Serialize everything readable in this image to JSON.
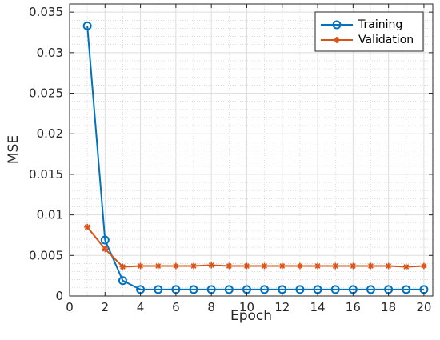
{
  "chart_data": {
    "type": "line",
    "xlabel": "Epoch",
    "ylabel": "MSE",
    "xlim": [
      0,
      20.5
    ],
    "ylim": [
      0,
      0.036
    ],
    "xticks": [
      0,
      2,
      4,
      6,
      8,
      10,
      12,
      14,
      16,
      18,
      20
    ],
    "xtick_labels": [
      "0",
      "2",
      "4",
      "6",
      "8",
      "10",
      "12",
      "14",
      "16",
      "18",
      "20"
    ],
    "yticks": [
      0,
      0.005,
      0.01,
      0.015,
      0.02,
      0.025,
      0.03,
      0.035
    ],
    "ytick_labels": [
      "0",
      "0.005",
      "0.01",
      "0.015",
      "0.02",
      "0.025",
      "0.03",
      "0.035"
    ],
    "grid": true,
    "minor_grid": true,
    "legend_position": "top-right",
    "x": [
      1,
      2,
      3,
      4,
      5,
      6,
      7,
      8,
      9,
      10,
      11,
      12,
      13,
      14,
      15,
      16,
      17,
      18,
      19,
      20
    ],
    "series": [
      {
        "name": "Training",
        "color": "#0072BD",
        "marker": "circle",
        "values": [
          0.0333,
          0.0069,
          0.0019,
          0.0008,
          0.0008,
          0.0008,
          0.0008,
          0.0008,
          0.0008,
          0.0008,
          0.0008,
          0.0008,
          0.0008,
          0.0008,
          0.0008,
          0.0008,
          0.0008,
          0.0008,
          0.0008,
          0.0008
        ]
      },
      {
        "name": "Validation",
        "color": "#D95319",
        "marker": "asterisk",
        "values": [
          0.0085,
          0.0058,
          0.0036,
          0.0037,
          0.0037,
          0.0037,
          0.0037,
          0.0038,
          0.0037,
          0.0037,
          0.0037,
          0.0037,
          0.0037,
          0.0037,
          0.0037,
          0.0037,
          0.0037,
          0.0037,
          0.0036,
          0.0037
        ]
      }
    ]
  }
}
